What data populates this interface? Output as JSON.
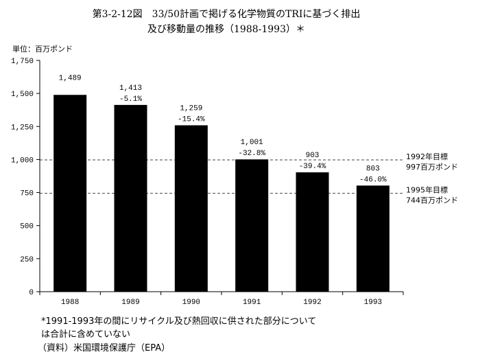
{
  "chart_data": {
    "type": "bar",
    "title_line1": "第3-2-12図　33/50計画で掲げる化学物質のTRIに基づく排出",
    "title_line2": "及び移動量の推移（1988-1993）＊",
    "unit_label": "単位：百万ポンド",
    "categories": [
      "1988",
      "1989",
      "1990",
      "1991",
      "1992",
      "1993"
    ],
    "values": [
      1489,
      1413,
      1259,
      1001,
      903,
      803
    ],
    "value_labels": [
      "1,489",
      "1,413",
      "1,259",
      "1,001",
      "903",
      "803"
    ],
    "change_labels": [
      "",
      "-5.1%",
      "-15.4%",
      "-32.8%",
      "-39.4%",
      "-46.0%"
    ],
    "ylim": [
      0,
      1750
    ],
    "yticks": [
      0,
      250,
      500,
      750,
      1000,
      1250,
      1500,
      1750
    ],
    "ytick_labels": [
      "0",
      "250",
      "500",
      "750",
      "1,000",
      "1,250",
      "1,500",
      "1,750"
    ],
    "bar_color": "#000000",
    "target_lines": [
      {
        "value": 997,
        "label_line1": "1992年目標",
        "label_line2": "997百万ポンド"
      },
      {
        "value": 744,
        "label_line1": "1995年目標",
        "label_line2": "744百万ポンド"
      }
    ],
    "footnote_line1": "*1991-1993年の間にリサイクル及び熱回収に供された部分について",
    "footnote_line2": "は合計に含めていない",
    "source": "（資料）米国環境保護庁（EPA）"
  }
}
